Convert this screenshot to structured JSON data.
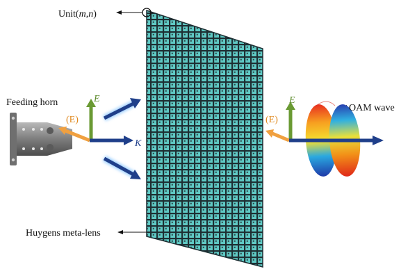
{
  "labels": {
    "unit": "Unit(m,n)",
    "unit_prefix": "Unit(",
    "unit_m": "m",
    "unit_comma": ",",
    "unit_n": "n",
    "unit_close": ")",
    "feeding_horn": "Feeding horn",
    "oam_wave": "OAM wave",
    "huygens_meta_lens": "Huygens meta-lens",
    "e_field_left": "E",
    "e_paren_left": "(E)",
    "k_vector": "K",
    "e_field_right": "E",
    "e_paren_right": "(E)"
  },
  "colors": {
    "lens_fill": "#5fc9c4",
    "lens_grid": "#1e2f33",
    "e_vector": "#6a9a33",
    "paren_e_vector": "#f0a040",
    "k_vector": "#1f3f8a",
    "beam_glow": "#9fd0ff",
    "horn_body": "#8a8a8a"
  }
}
